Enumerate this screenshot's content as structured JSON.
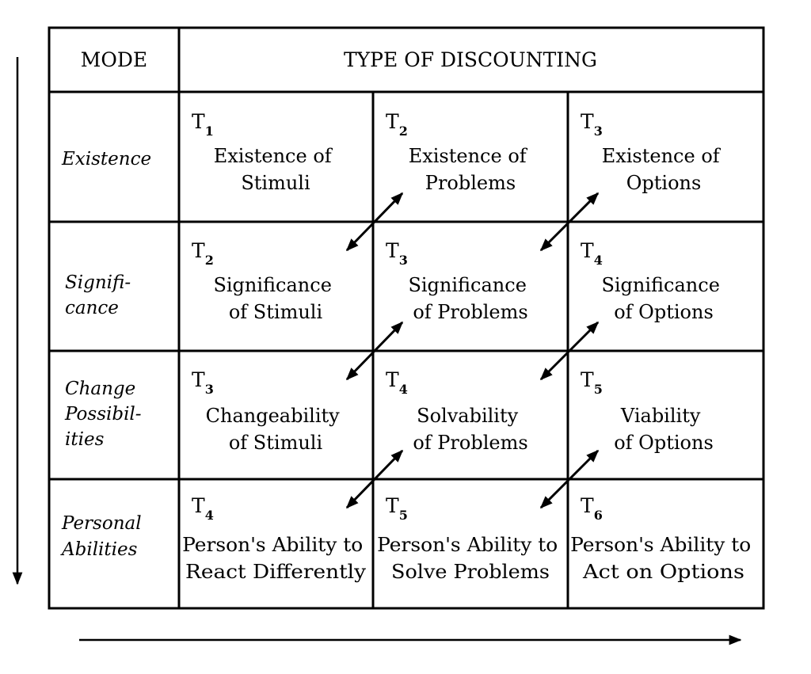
{
  "header": {
    "mode": "MODE",
    "type": "TYPE OF DISCOUNTING"
  },
  "modes": [
    {
      "lines": [
        "Existence"
      ]
    },
    {
      "lines": [
        "Signifi-",
        "cance"
      ]
    },
    {
      "lines": [
        "Change",
        "Possibil-",
        "ities"
      ]
    },
    {
      "lines": [
        "Personal",
        "Abilities"
      ]
    }
  ],
  "cells": [
    [
      {
        "t": "T",
        "n": "1",
        "lines": [
          "Existence of",
          "Stimuli"
        ]
      },
      {
        "t": "T",
        "n": "2",
        "lines": [
          "Existence of",
          "Problems"
        ]
      },
      {
        "t": "T",
        "n": "3",
        "lines": [
          "Existence of",
          "Options"
        ]
      }
    ],
    [
      {
        "t": "T",
        "n": "2",
        "lines": [
          "Significance",
          "of Stimuli"
        ]
      },
      {
        "t": "T",
        "n": "3",
        "lines": [
          "Significance",
          "of Problems"
        ]
      },
      {
        "t": "T",
        "n": "4",
        "lines": [
          "Significance",
          "of Options"
        ]
      }
    ],
    [
      {
        "t": "T",
        "n": "3",
        "lines": [
          "Changeability",
          "of Stimuli"
        ]
      },
      {
        "t": "T",
        "n": "4",
        "lines": [
          "Solvability",
          "of Problems"
        ]
      },
      {
        "t": "T",
        "n": "5",
        "lines": [
          "Viability",
          "of Options"
        ]
      }
    ],
    [
      {
        "t": "T",
        "n": "4",
        "lines": [
          "Person's Ability to",
          "React Differently"
        ]
      },
      {
        "t": "T",
        "n": "5",
        "lines": [
          "Person's Ability to",
          "Solve Problems"
        ]
      },
      {
        "t": "T",
        "n": "6",
        "lines": [
          "Person's Ability to",
          "Act on Options"
        ]
      }
    ]
  ]
}
